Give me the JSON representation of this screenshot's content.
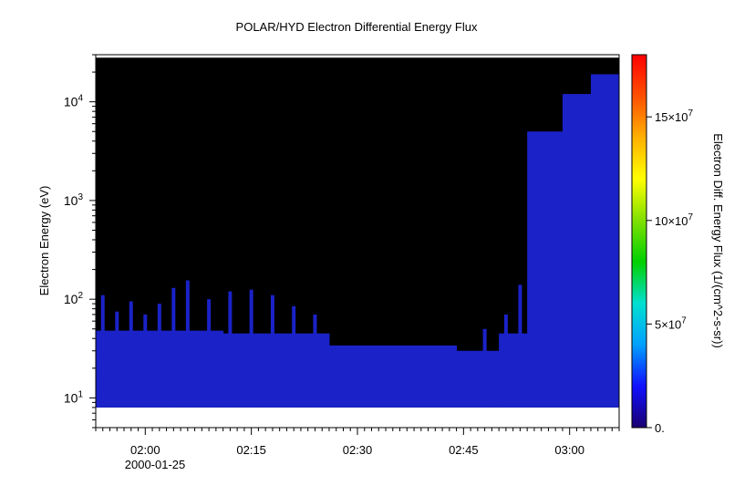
{
  "chart_data": {
    "type": "heatmap",
    "title": "POLAR/HYD  Electron Differential Energy Flux",
    "ylabel": "Electron Energy (eV)",
    "xlabel": "",
    "x_range": [
      "01:53",
      "03:07"
    ],
    "x_ticks": [
      "02:00",
      "02:15",
      "02:30",
      "02:45",
      "03:00"
    ],
    "x_date_label": "2000-01-25",
    "y_scale": "log",
    "y_range_ev": [
      5,
      30000
    ],
    "y_ticks": [
      {
        "value": 10,
        "base": "10",
        "exp": "1"
      },
      {
        "value": 100,
        "base": "10",
        "exp": "2"
      },
      {
        "value": 1000,
        "base": "10",
        "exp": "3"
      },
      {
        "value": 10000,
        "base": "10",
        "exp": "4"
      }
    ],
    "data_energy_range_ev": [
      8,
      28000
    ],
    "fill_color": "#000000",
    "colorbar": {
      "label": "Electron Diff. Energy Flux (1/(cm^2-s-sr))",
      "range": [
        0,
        180000000
      ],
      "ticks": [
        {
          "value": 0,
          "label": "0.",
          "exp": ""
        },
        {
          "value": 50000000,
          "label": "5×10",
          "exp": "7"
        },
        {
          "value": 100000000,
          "label": "10×10",
          "exp": "7"
        },
        {
          "value": 150000000,
          "label": "15×10",
          "exp": "7"
        }
      ],
      "colors": [
        "#1a0070",
        "#1010ff",
        "#00a0ff",
        "#00e0d0",
        "#00d000",
        "#80e000",
        "#ffff00",
        "#ffb000",
        "#ff5000",
        "#ff0000"
      ]
    },
    "spectrum_segments": [
      {
        "start": "01:53",
        "end": "02:11",
        "top_ev": 48,
        "color": "#1a22c8"
      },
      {
        "start": "02:11",
        "end": "02:26",
        "top_ev": 45,
        "color": "#1a22c8"
      },
      {
        "start": "02:26",
        "end": "02:44",
        "top_ev": 34,
        "color": "#1a22c8"
      },
      {
        "start": "02:44",
        "end": "02:50",
        "top_ev": 30,
        "color": "#1a22c8"
      },
      {
        "start": "02:50",
        "end": "02:54",
        "top_ev": 45,
        "color": "#1a22c8"
      },
      {
        "start": "02:54",
        "end": "02:59",
        "top_ev": 5000,
        "color": "#1a22c8"
      },
      {
        "start": "02:59",
        "end": "03:03",
        "top_ev": 12000,
        "color": "#1a22c8"
      },
      {
        "start": "03:03",
        "end": "03:07",
        "top_ev": 19000,
        "color": "#1a22c8"
      }
    ],
    "spikes": [
      {
        "time": "01:54",
        "top_ev": 110
      },
      {
        "time": "01:56",
        "top_ev": 75
      },
      {
        "time": "01:58",
        "top_ev": 95
      },
      {
        "time": "02:00",
        "top_ev": 70
      },
      {
        "time": "02:02",
        "top_ev": 90
      },
      {
        "time": "02:04",
        "top_ev": 130
      },
      {
        "time": "02:06",
        "top_ev": 155
      },
      {
        "time": "02:09",
        "top_ev": 100
      },
      {
        "time": "02:12",
        "top_ev": 120
      },
      {
        "time": "02:15",
        "top_ev": 125
      },
      {
        "time": "02:18",
        "top_ev": 110
      },
      {
        "time": "02:21",
        "top_ev": 85
      },
      {
        "time": "02:24",
        "top_ev": 70
      },
      {
        "time": "02:48",
        "top_ev": 50
      },
      {
        "time": "02:51",
        "top_ev": 70
      },
      {
        "time": "02:53",
        "top_ev": 140
      }
    ]
  }
}
